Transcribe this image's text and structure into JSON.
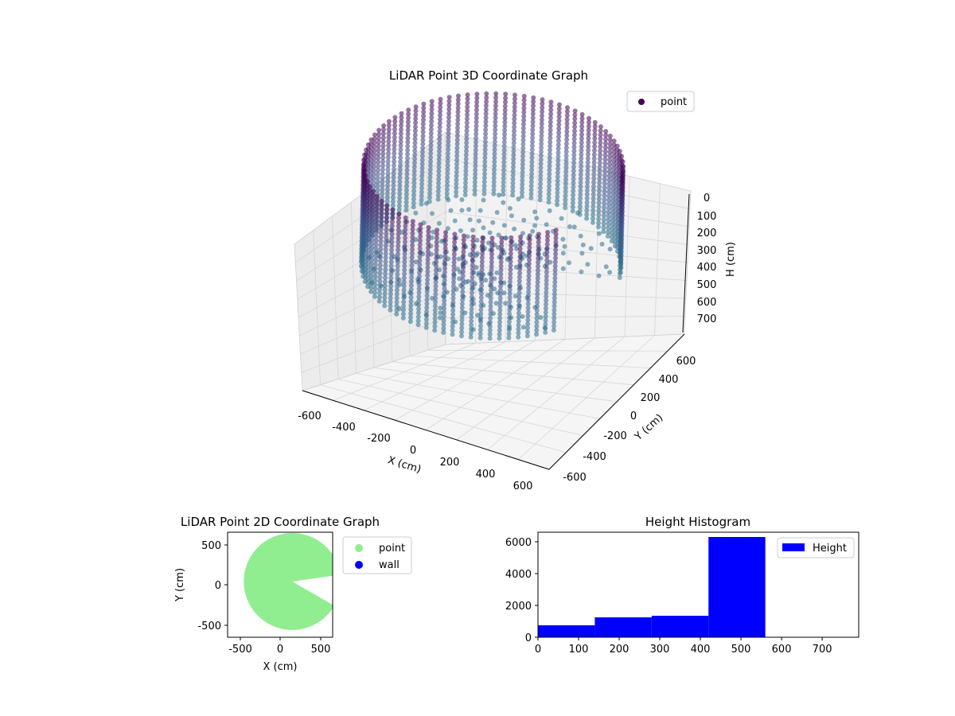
{
  "chart_data": [
    {
      "type": "scatter",
      "projection": "3d",
      "title": "LiDAR Point 3D Coordinate Graph",
      "xlabel": "X (cm)",
      "ylabel": "Y (cm)",
      "zlabel": "H (cm)",
      "xlim": [
        -650,
        650
      ],
      "ylim": [
        -650,
        650
      ],
      "zlim": [
        760,
        0
      ],
      "z_inverted": true,
      "xticks": [
        -600,
        -400,
        -200,
        0,
        200,
        400,
        600
      ],
      "yticks": [
        -600,
        -400,
        -200,
        0,
        200,
        400,
        600
      ],
      "zticks": [
        0,
        100,
        200,
        300,
        400,
        500,
        600,
        700
      ],
      "grid": true,
      "legend": {
        "position": "top-right",
        "entries": [
          "point"
        ]
      },
      "series": [
        {
          "name": "point",
          "colormap": "viridis",
          "color": "#440154",
          "description_values": {
            "shape": "cylindrical wall of radius about 600 cm with a missing wedge toward +X",
            "radius": 600,
            "height_range": [
              0,
              560
            ]
          }
        }
      ]
    },
    {
      "type": "scatter",
      "title": "LiDAR Point 2D Coordinate Graph",
      "xlabel": "X (cm)",
      "ylabel": "Y (cm)",
      "xlim": [
        -650,
        650
      ],
      "ylim": [
        -650,
        650
      ],
      "xticks": [
        -500,
        0,
        500
      ],
      "yticks": [
        -500,
        0,
        500
      ],
      "legend": {
        "position": "outside-right",
        "entries": [
          "point",
          "wall"
        ]
      },
      "series": [
        {
          "name": "point",
          "color": "#90ee90"
        },
        {
          "name": "wall",
          "color": "#0000ff",
          "values": []
        }
      ]
    },
    {
      "type": "bar",
      "subtype": "histogram",
      "title": "Height Histogram",
      "xlabel": "",
      "ylabel": "",
      "xlim": [
        0,
        790
      ],
      "ylim": [
        0,
        6600
      ],
      "xticks": [
        0,
        100,
        200,
        300,
        400,
        500,
        600,
        700
      ],
      "yticks": [
        0,
        2000,
        4000,
        6000
      ],
      "bin_edges": [
        0,
        140,
        280,
        420,
        560
      ],
      "values": [
        750,
        1250,
        1350,
        6300
      ],
      "legend": {
        "position": "top-right",
        "entries": [
          "Height"
        ]
      },
      "series": [
        {
          "name": "Height",
          "color": "#0000ff"
        }
      ]
    }
  ]
}
